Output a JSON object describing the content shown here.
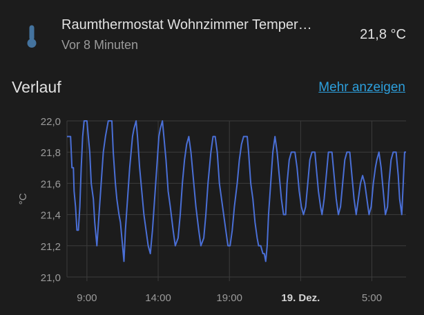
{
  "entity": {
    "name": "Raumthermostat Wohnzimmer Temper…",
    "last_changed": "Vor 8 Minuten",
    "state": "21,8 °C",
    "icon": "thermometer-icon"
  },
  "history": {
    "title": "Verlauf",
    "more_label": "Mehr anzeigen"
  },
  "colors": {
    "background": "#1c1c1c",
    "line": "#4a6fd6",
    "grid": "#3c3c3c",
    "link": "#2d9fdc"
  },
  "chart_data": {
    "type": "line",
    "ylabel": "°C",
    "ylim": [
      21.0,
      22.0
    ],
    "y_ticks": [
      "22,0",
      "21,8",
      "21,6",
      "21,4",
      "21,2",
      "21,0"
    ],
    "x_ticks": [
      {
        "label": "9:00",
        "bold": false
      },
      {
        "label": "14:00",
        "bold": false
      },
      {
        "label": "19:00",
        "bold": false
      },
      {
        "label": "19. Dez.",
        "bold": true
      },
      {
        "label": "5:00",
        "bold": false
      }
    ],
    "x_range_hours": [
      7.6,
      31.4
    ],
    "tick_hours": [
      9,
      14,
      19,
      24,
      29
    ],
    "grid": true,
    "series": [
      {
        "points": [
          [
            7.6,
            21.9
          ],
          [
            7.85,
            21.9
          ],
          [
            7.95,
            21.7
          ],
          [
            8.05,
            21.7
          ],
          [
            8.1,
            21.55
          ],
          [
            8.2,
            21.45
          ],
          [
            8.3,
            21.3
          ],
          [
            8.4,
            21.3
          ],
          [
            8.5,
            21.45
          ],
          [
            8.6,
            21.7
          ],
          [
            8.7,
            21.9
          ],
          [
            8.8,
            22.0
          ],
          [
            9.0,
            22.0
          ],
          [
            9.1,
            21.9
          ],
          [
            9.2,
            21.8
          ],
          [
            9.3,
            21.6
          ],
          [
            9.45,
            21.5
          ],
          [
            9.55,
            21.35
          ],
          [
            9.7,
            21.2
          ],
          [
            9.85,
            21.4
          ],
          [
            10.0,
            21.6
          ],
          [
            10.15,
            21.8
          ],
          [
            10.3,
            21.9
          ],
          [
            10.5,
            22.0
          ],
          [
            10.75,
            22.0
          ],
          [
            10.85,
            21.8
          ],
          [
            11.0,
            21.6
          ],
          [
            11.1,
            21.5
          ],
          [
            11.25,
            21.4
          ],
          [
            11.35,
            21.35
          ],
          [
            11.5,
            21.2
          ],
          [
            11.6,
            21.1
          ],
          [
            11.7,
            21.3
          ],
          [
            11.85,
            21.5
          ],
          [
            12.0,
            21.7
          ],
          [
            12.2,
            21.9
          ],
          [
            12.3,
            21.95
          ],
          [
            12.45,
            22.0
          ],
          [
            12.55,
            21.9
          ],
          [
            12.7,
            21.7
          ],
          [
            12.85,
            21.55
          ],
          [
            13.0,
            21.4
          ],
          [
            13.15,
            21.3
          ],
          [
            13.3,
            21.2
          ],
          [
            13.45,
            21.15
          ],
          [
            13.6,
            21.3
          ],
          [
            13.75,
            21.5
          ],
          [
            13.9,
            21.7
          ],
          [
            14.05,
            21.9
          ],
          [
            14.15,
            21.95
          ],
          [
            14.3,
            22.0
          ],
          [
            14.4,
            21.9
          ],
          [
            14.55,
            21.75
          ],
          [
            14.7,
            21.55
          ],
          [
            14.85,
            21.45
          ],
          [
            15.05,
            21.3
          ],
          [
            15.2,
            21.2
          ],
          [
            15.4,
            21.25
          ],
          [
            15.55,
            21.4
          ],
          [
            15.7,
            21.6
          ],
          [
            15.85,
            21.75
          ],
          [
            16.0,
            21.85
          ],
          [
            16.15,
            21.9
          ],
          [
            16.3,
            21.8
          ],
          [
            16.5,
            21.6
          ],
          [
            16.65,
            21.45
          ],
          [
            16.85,
            21.3
          ],
          [
            17.0,
            21.2
          ],
          [
            17.2,
            21.25
          ],
          [
            17.35,
            21.4
          ],
          [
            17.5,
            21.6
          ],
          [
            17.7,
            21.8
          ],
          [
            17.85,
            21.9
          ],
          [
            18.0,
            21.9
          ],
          [
            18.15,
            21.8
          ],
          [
            18.3,
            21.6
          ],
          [
            18.45,
            21.5
          ],
          [
            18.6,
            21.4
          ],
          [
            18.75,
            21.3
          ],
          [
            18.9,
            21.2
          ],
          [
            19.05,
            21.2
          ],
          [
            19.2,
            21.3
          ],
          [
            19.35,
            21.45
          ],
          [
            19.55,
            21.6
          ],
          [
            19.7,
            21.75
          ],
          [
            19.85,
            21.85
          ],
          [
            20.0,
            21.9
          ],
          [
            20.25,
            21.9
          ],
          [
            20.35,
            21.8
          ],
          [
            20.5,
            21.6
          ],
          [
            20.65,
            21.5
          ],
          [
            20.8,
            21.35
          ],
          [
            20.95,
            21.25
          ],
          [
            21.05,
            21.2
          ],
          [
            21.2,
            21.2
          ],
          [
            21.35,
            21.15
          ],
          [
            21.45,
            21.15
          ],
          [
            21.55,
            21.1
          ],
          [
            21.65,
            21.2
          ],
          [
            21.75,
            21.4
          ],
          [
            21.9,
            21.6
          ],
          [
            22.05,
            21.8
          ],
          [
            22.2,
            21.9
          ],
          [
            22.35,
            21.8
          ],
          [
            22.5,
            21.65
          ],
          [
            22.65,
            21.5
          ],
          [
            22.8,
            21.4
          ],
          [
            22.95,
            21.4
          ],
          [
            23.05,
            21.6
          ],
          [
            23.2,
            21.75
          ],
          [
            23.35,
            21.8
          ],
          [
            23.6,
            21.8
          ],
          [
            23.75,
            21.7
          ],
          [
            23.9,
            21.55
          ],
          [
            24.05,
            21.45
          ],
          [
            24.2,
            21.4
          ],
          [
            24.35,
            21.45
          ],
          [
            24.5,
            21.6
          ],
          [
            24.65,
            21.75
          ],
          [
            24.8,
            21.8
          ],
          [
            25.0,
            21.8
          ],
          [
            25.1,
            21.7
          ],
          [
            25.25,
            21.55
          ],
          [
            25.4,
            21.45
          ],
          [
            25.5,
            21.4
          ],
          [
            25.65,
            21.5
          ],
          [
            25.8,
            21.65
          ],
          [
            25.95,
            21.8
          ],
          [
            26.2,
            21.8
          ],
          [
            26.35,
            21.65
          ],
          [
            26.5,
            21.5
          ],
          [
            26.65,
            21.4
          ],
          [
            26.8,
            21.45
          ],
          [
            26.95,
            21.6
          ],
          [
            27.1,
            21.75
          ],
          [
            27.25,
            21.8
          ],
          [
            27.45,
            21.8
          ],
          [
            27.6,
            21.65
          ],
          [
            27.75,
            21.5
          ],
          [
            27.9,
            21.4
          ],
          [
            28.05,
            21.5
          ],
          [
            28.2,
            21.6
          ],
          [
            28.35,
            21.65
          ],
          [
            28.5,
            21.6
          ],
          [
            28.65,
            21.5
          ],
          [
            28.8,
            21.4
          ],
          [
            28.95,
            21.45
          ],
          [
            29.1,
            21.6
          ],
          [
            29.25,
            21.7
          ],
          [
            29.35,
            21.75
          ],
          [
            29.5,
            21.8
          ],
          [
            29.65,
            21.7
          ],
          [
            29.8,
            21.55
          ],
          [
            29.95,
            21.4
          ],
          [
            30.1,
            21.45
          ],
          [
            30.2,
            21.6
          ],
          [
            30.35,
            21.75
          ],
          [
            30.5,
            21.8
          ],
          [
            30.7,
            21.8
          ],
          [
            30.85,
            21.65
          ],
          [
            30.95,
            21.5
          ],
          [
            31.1,
            21.4
          ],
          [
            31.2,
            21.6
          ],
          [
            31.3,
            21.8
          ],
          [
            31.4,
            21.8
          ]
        ]
      }
    ]
  }
}
